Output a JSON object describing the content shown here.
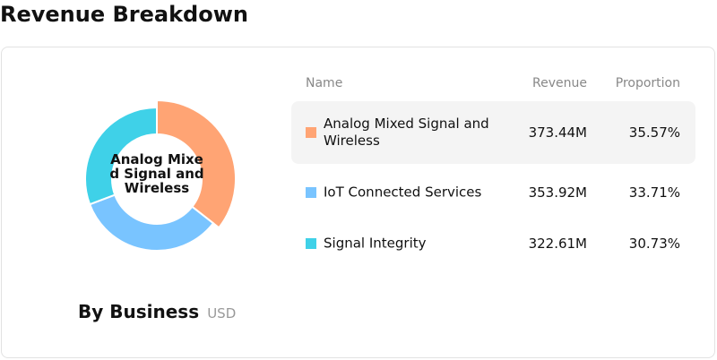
{
  "title": "Revenue Breakdown",
  "panel": {
    "subtitle": "By Business",
    "unit": "USD",
    "center_label": "Analog Mixed Signal and Wireless"
  },
  "table": {
    "headers": {
      "name": "Name",
      "revenue": "Revenue",
      "proportion": "Proportion"
    },
    "rows": [
      {
        "name": "Analog Mixed Signal and Wireless",
        "revenue": "373.44M",
        "proportion": "35.57%",
        "color": "#FFA474"
      },
      {
        "name": "IoT Connected Services",
        "revenue": "353.92M",
        "proportion": "33.71%",
        "color": "#79C4FF"
      },
      {
        "name": "Signal Integrity",
        "revenue": "322.61M",
        "proportion": "30.73%",
        "color": "#3FD1E8"
      }
    ]
  },
  "chart_data": {
    "type": "pie",
    "donut": true,
    "categories": [
      "Analog Mixed Signal and Wireless",
      "IoT Connected Services",
      "Signal Integrity"
    ],
    "values": [
      373.44,
      353.92,
      322.61
    ],
    "unit": "USD",
    "colors": [
      "#FFA474",
      "#79C4FF",
      "#3FD1E8"
    ],
    "highlighted": "Analog Mixed Signal and Wireless"
  }
}
